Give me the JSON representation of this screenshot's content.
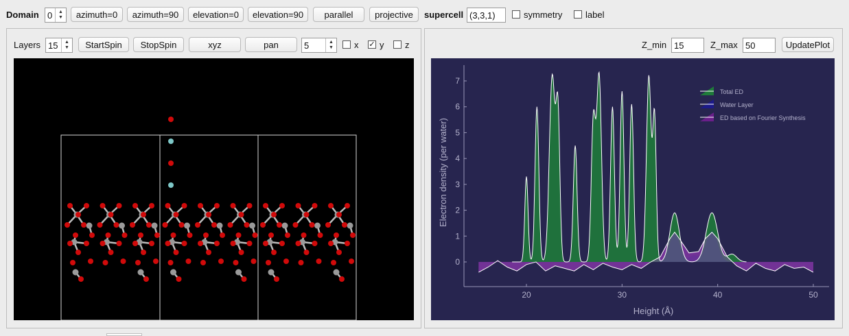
{
  "toolbar": {
    "domain_label": "Domain",
    "domain_value": "0",
    "azimuth0": "azimuth=0",
    "azimuth90": "azimuth=90",
    "elevation0": "elevation=0",
    "elevation90": "elevation=90",
    "parallel": "parallel",
    "projective": "projective",
    "supercell_label": "supercell",
    "supercell_value": "(3,3,1)",
    "symmetry_label": "symmetry",
    "symmetry_checked": false,
    "label_label": "label",
    "label_checked": false
  },
  "left_panel": {
    "layers_label": "Layers",
    "layers_value": "15",
    "startspin": "StartSpin",
    "stopspin": "StopSpin",
    "xyz": "xyz",
    "pan": "pan",
    "step_value": "5",
    "x_label": "x",
    "y_label": "y",
    "z_label": "z",
    "x_checked": false,
    "y_checked": true,
    "z_checked": false,
    "y_check_glyph": "✓"
  },
  "right_panel": {
    "zmin_label": "Z_min",
    "zmin_value": "15",
    "zmax_label": "Z_max",
    "zmax_value": "50",
    "update_button": "UpdatePlot"
  },
  "colors": {
    "plot_bg": "#27254f",
    "viewer_bg": "#000000",
    "total_ed": "#1f7a3a",
    "water_layer": "#1c1a8a",
    "fourier_ed": "#6a1f8a",
    "oxygen": "#d10a0a",
    "water_atom": "#7ec8c8",
    "metal": "#9a9a9a"
  },
  "chart_data": {
    "type": "area",
    "xlabel": "Height (Å)",
    "ylabel": "Electron density (per water)",
    "xlim": [
      14,
      51
    ],
    "ylim": [
      -0.9,
      7.5
    ],
    "xticks": [
      "20",
      "30",
      "40",
      "50"
    ],
    "yticks": [
      "0",
      "1",
      "2",
      "3",
      "4",
      "5",
      "6",
      "7"
    ],
    "legend_position": "top-right",
    "series": [
      {
        "name": "Total ED",
        "peaks": [
          {
            "x": 20.0,
            "y": 3.3,
            "w": 0.17
          },
          {
            "x": 21.1,
            "y": 6.0,
            "w": 0.2
          },
          {
            "x": 22.7,
            "y": 7.2,
            "w": 0.3
          },
          {
            "x": 23.3,
            "y": 5.4,
            "w": 0.2
          },
          {
            "x": 25.1,
            "y": 4.5,
            "w": 0.2
          },
          {
            "x": 27.0,
            "y": 5.4,
            "w": 0.22
          },
          {
            "x": 27.6,
            "y": 7.2,
            "w": 0.25
          },
          {
            "x": 29.0,
            "y": 6.0,
            "w": 0.2
          },
          {
            "x": 30.0,
            "y": 6.6,
            "w": 0.2
          },
          {
            "x": 31.0,
            "y": 6.1,
            "w": 0.2
          },
          {
            "x": 32.8,
            "y": 7.2,
            "w": 0.25
          },
          {
            "x": 33.4,
            "y": 5.5,
            "w": 0.18
          },
          {
            "x": 35.5,
            "y": 1.9,
            "w": 0.5
          },
          {
            "x": 39.4,
            "y": 1.9,
            "w": 0.6
          },
          {
            "x": 41.5,
            "y": 0.3,
            "w": 0.5
          }
        ]
      },
      {
        "name": "Water Layer",
        "peaks": [
          {
            "x": 35.5,
            "y": 1.1,
            "w": 0.55
          },
          {
            "x": 37.5,
            "y": 0.25,
            "w": 0.5
          },
          {
            "x": 39.4,
            "y": 1.2,
            "w": 0.6
          }
        ]
      },
      {
        "name": "ED based on Fourier Synthesis",
        "points": [
          [
            15,
            -0.4
          ],
          [
            16,
            -0.2
          ],
          [
            17,
            0.05
          ],
          [
            18,
            -0.2
          ],
          [
            19,
            -0.35
          ],
          [
            20,
            -0.1
          ],
          [
            21,
            0.0
          ],
          [
            22,
            -0.35
          ],
          [
            23,
            -0.15
          ],
          [
            24,
            -0.25
          ],
          [
            25,
            -0.35
          ],
          [
            26,
            -0.1
          ],
          [
            27,
            -0.3
          ],
          [
            28,
            -0.05
          ],
          [
            29,
            -0.2
          ],
          [
            30,
            -0.3
          ],
          [
            31,
            -0.1
          ],
          [
            32,
            -0.25
          ],
          [
            33,
            0.0
          ],
          [
            34,
            0.2
          ],
          [
            35,
            0.9
          ],
          [
            35.5,
            1.15
          ],
          [
            36,
            0.9
          ],
          [
            37,
            0.35
          ],
          [
            38,
            0.4
          ],
          [
            38.7,
            0.9
          ],
          [
            39.4,
            1.15
          ],
          [
            40,
            0.9
          ],
          [
            41,
            0.2
          ],
          [
            42,
            -0.15
          ],
          [
            43,
            -0.35
          ],
          [
            44,
            -0.05
          ],
          [
            45,
            -0.25
          ],
          [
            46,
            -0.35
          ],
          [
            47,
            -0.1
          ],
          [
            48,
            -0.25
          ],
          [
            49,
            -0.2
          ],
          [
            50,
            -0.4
          ]
        ]
      }
    ]
  }
}
